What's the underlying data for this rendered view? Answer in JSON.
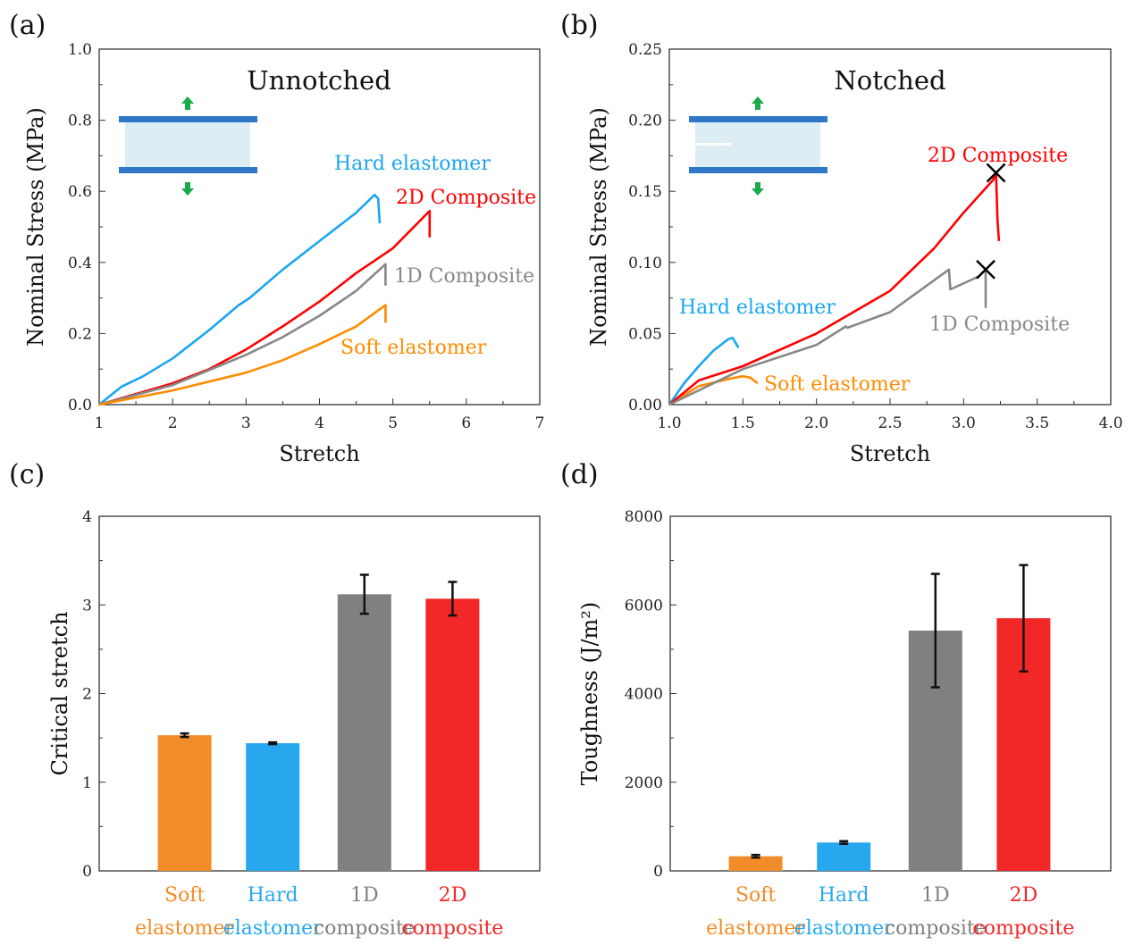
{
  "colors": {
    "soft": "#ff8c00",
    "hard": "#1aa6f0",
    "c1d": "#888888",
    "c2d": "#ff0000",
    "bar_soft": "#f28c28",
    "bar_hard": "#27a8ee",
    "bar_1d": "#808080",
    "bar_2d": "#f22828",
    "arrow": "#1aaa4a",
    "clamp": "#2f78c8",
    "sample": "#dcedf3"
  },
  "chart_data": [
    {
      "panel": "(a)",
      "type": "line",
      "title": "Unnotched",
      "xlabel": "Stretch",
      "ylabel": "Nominal Stress (MPa)",
      "xlim": [
        1,
        7
      ],
      "ylim": [
        0,
        1.0
      ],
      "xticks": [
        "1",
        "2",
        "3",
        "4",
        "5",
        "6",
        "7"
      ],
      "yticks": [
        "0.0",
        "0.2",
        "0.4",
        "0.6",
        "0.8",
        "1.0"
      ],
      "series": [
        {
          "name": "Hard elastomer",
          "color_key": "hard",
          "x": [
            1,
            1.3,
            1.6,
            2,
            2.5,
            2.9,
            3.05,
            3.5,
            4,
            4.5,
            4.75,
            4.8,
            4.82
          ],
          "y": [
            0,
            0.05,
            0.08,
            0.13,
            0.21,
            0.28,
            0.3,
            0.38,
            0.46,
            0.54,
            0.59,
            0.58,
            0.51
          ]
        },
        {
          "name": "2D Composite",
          "color_key": "c2d",
          "x": [
            1,
            1.5,
            2,
            2.5,
            3,
            3.5,
            4,
            4.5,
            5,
            5.5,
            5.5
          ],
          "y": [
            0,
            0.03,
            0.06,
            0.1,
            0.155,
            0.22,
            0.29,
            0.37,
            0.44,
            0.545,
            0.47
          ]
        },
        {
          "name": "1D Composite",
          "color_key": "c1d",
          "x": [
            1,
            2,
            3,
            3.5,
            4,
            4.5,
            4.9,
            4.9
          ],
          "y": [
            0,
            0.055,
            0.14,
            0.19,
            0.25,
            0.32,
            0.395,
            0.335
          ]
        },
        {
          "name": "Soft elastomer",
          "color_key": "soft",
          "x": [
            1,
            2,
            3,
            3.5,
            4,
            4.5,
            4.9,
            4.9
          ],
          "y": [
            0,
            0.04,
            0.09,
            0.125,
            0.17,
            0.22,
            0.28,
            0.23
          ]
        }
      ],
      "markers": []
    },
    {
      "panel": "(b)",
      "type": "line",
      "title": "Notched",
      "xlabel": "Stretch",
      "ylabel": "Nominal Stress (MPa)",
      "xlim": [
        1.0,
        4.0
      ],
      "ylim": [
        0,
        0.25
      ],
      "xticks": [
        "1.0",
        "1.5",
        "2.0",
        "2.5",
        "3.0",
        "3.5",
        "4.0"
      ],
      "yticks": [
        "0.00",
        "0.05",
        "0.10",
        "0.15",
        "0.20",
        "0.25"
      ],
      "series": [
        {
          "name": "Hard elastomer",
          "color_key": "hard",
          "x": [
            1,
            1.1,
            1.2,
            1.3,
            1.4,
            1.43,
            1.47
          ],
          "y": [
            0,
            0.015,
            0.027,
            0.038,
            0.046,
            0.047,
            0.04
          ]
        },
        {
          "name": "Soft elastomer",
          "color_key": "soft",
          "x": [
            1,
            1.2,
            1.4,
            1.5,
            1.55,
            1.6
          ],
          "y": [
            0,
            0.013,
            0.018,
            0.02,
            0.019,
            0.015
          ]
        },
        {
          "name": "2D Composite",
          "color_key": "c2d",
          "x": [
            1,
            1.2,
            1.5,
            2,
            2.5,
            2.8,
            3,
            3.2,
            3.22,
            3.23,
            3.24
          ],
          "y": [
            0,
            0.017,
            0.027,
            0.05,
            0.08,
            0.11,
            0.135,
            0.158,
            0.163,
            0.13,
            0.115
          ]
        },
        {
          "name": "1D Composite",
          "color_key": "c1d",
          "x": [
            1,
            1.5,
            2,
            2.2,
            2.21,
            2.5,
            2.9,
            2.91,
            3.1,
            3.15,
            3.15
          ],
          "y": [
            0,
            0.025,
            0.042,
            0.055,
            0.054,
            0.065,
            0.095,
            0.081,
            0.09,
            0.095,
            0.068
          ]
        }
      ],
      "markers": [
        {
          "x": 3.22,
          "y": 0.163,
          "symbol": "x"
        },
        {
          "x": 3.15,
          "y": 0.095,
          "symbol": "x"
        }
      ]
    },
    {
      "panel": "(c)",
      "type": "bar",
      "ylabel": "Critical stretch",
      "ylim": [
        0,
        4
      ],
      "yticks": [
        "0",
        "1",
        "2",
        "3",
        "4"
      ],
      "categories": [
        [
          "Soft",
          "elastomer"
        ],
        [
          "Hard",
          "elastomer"
        ],
        [
          "1D",
          "composite"
        ],
        [
          "2D",
          "composite"
        ]
      ],
      "color_keys": [
        "bar_soft",
        "bar_hard",
        "bar_1d",
        "bar_2d"
      ],
      "values": [
        1.53,
        1.44,
        3.12,
        3.07
      ],
      "errors": [
        0.02,
        0.01,
        0.22,
        0.19
      ]
    },
    {
      "panel": "(d)",
      "type": "bar",
      "ylabel": "Toughness (J/m²)",
      "ylim": [
        0,
        8000
      ],
      "yticks": [
        "0",
        "2000",
        "4000",
        "6000",
        "8000"
      ],
      "categories": [
        [
          "Soft",
          "elastomer"
        ],
        [
          "Hard",
          "elastomer"
        ],
        [
          "1D",
          "composite"
        ],
        [
          "2D",
          "composite"
        ]
      ],
      "color_keys": [
        "bar_soft",
        "bar_hard",
        "bar_1d",
        "bar_2d"
      ],
      "values": [
        330,
        640,
        5420,
        5700
      ],
      "errors": [
        30,
        30,
        1280,
        1200
      ]
    }
  ]
}
